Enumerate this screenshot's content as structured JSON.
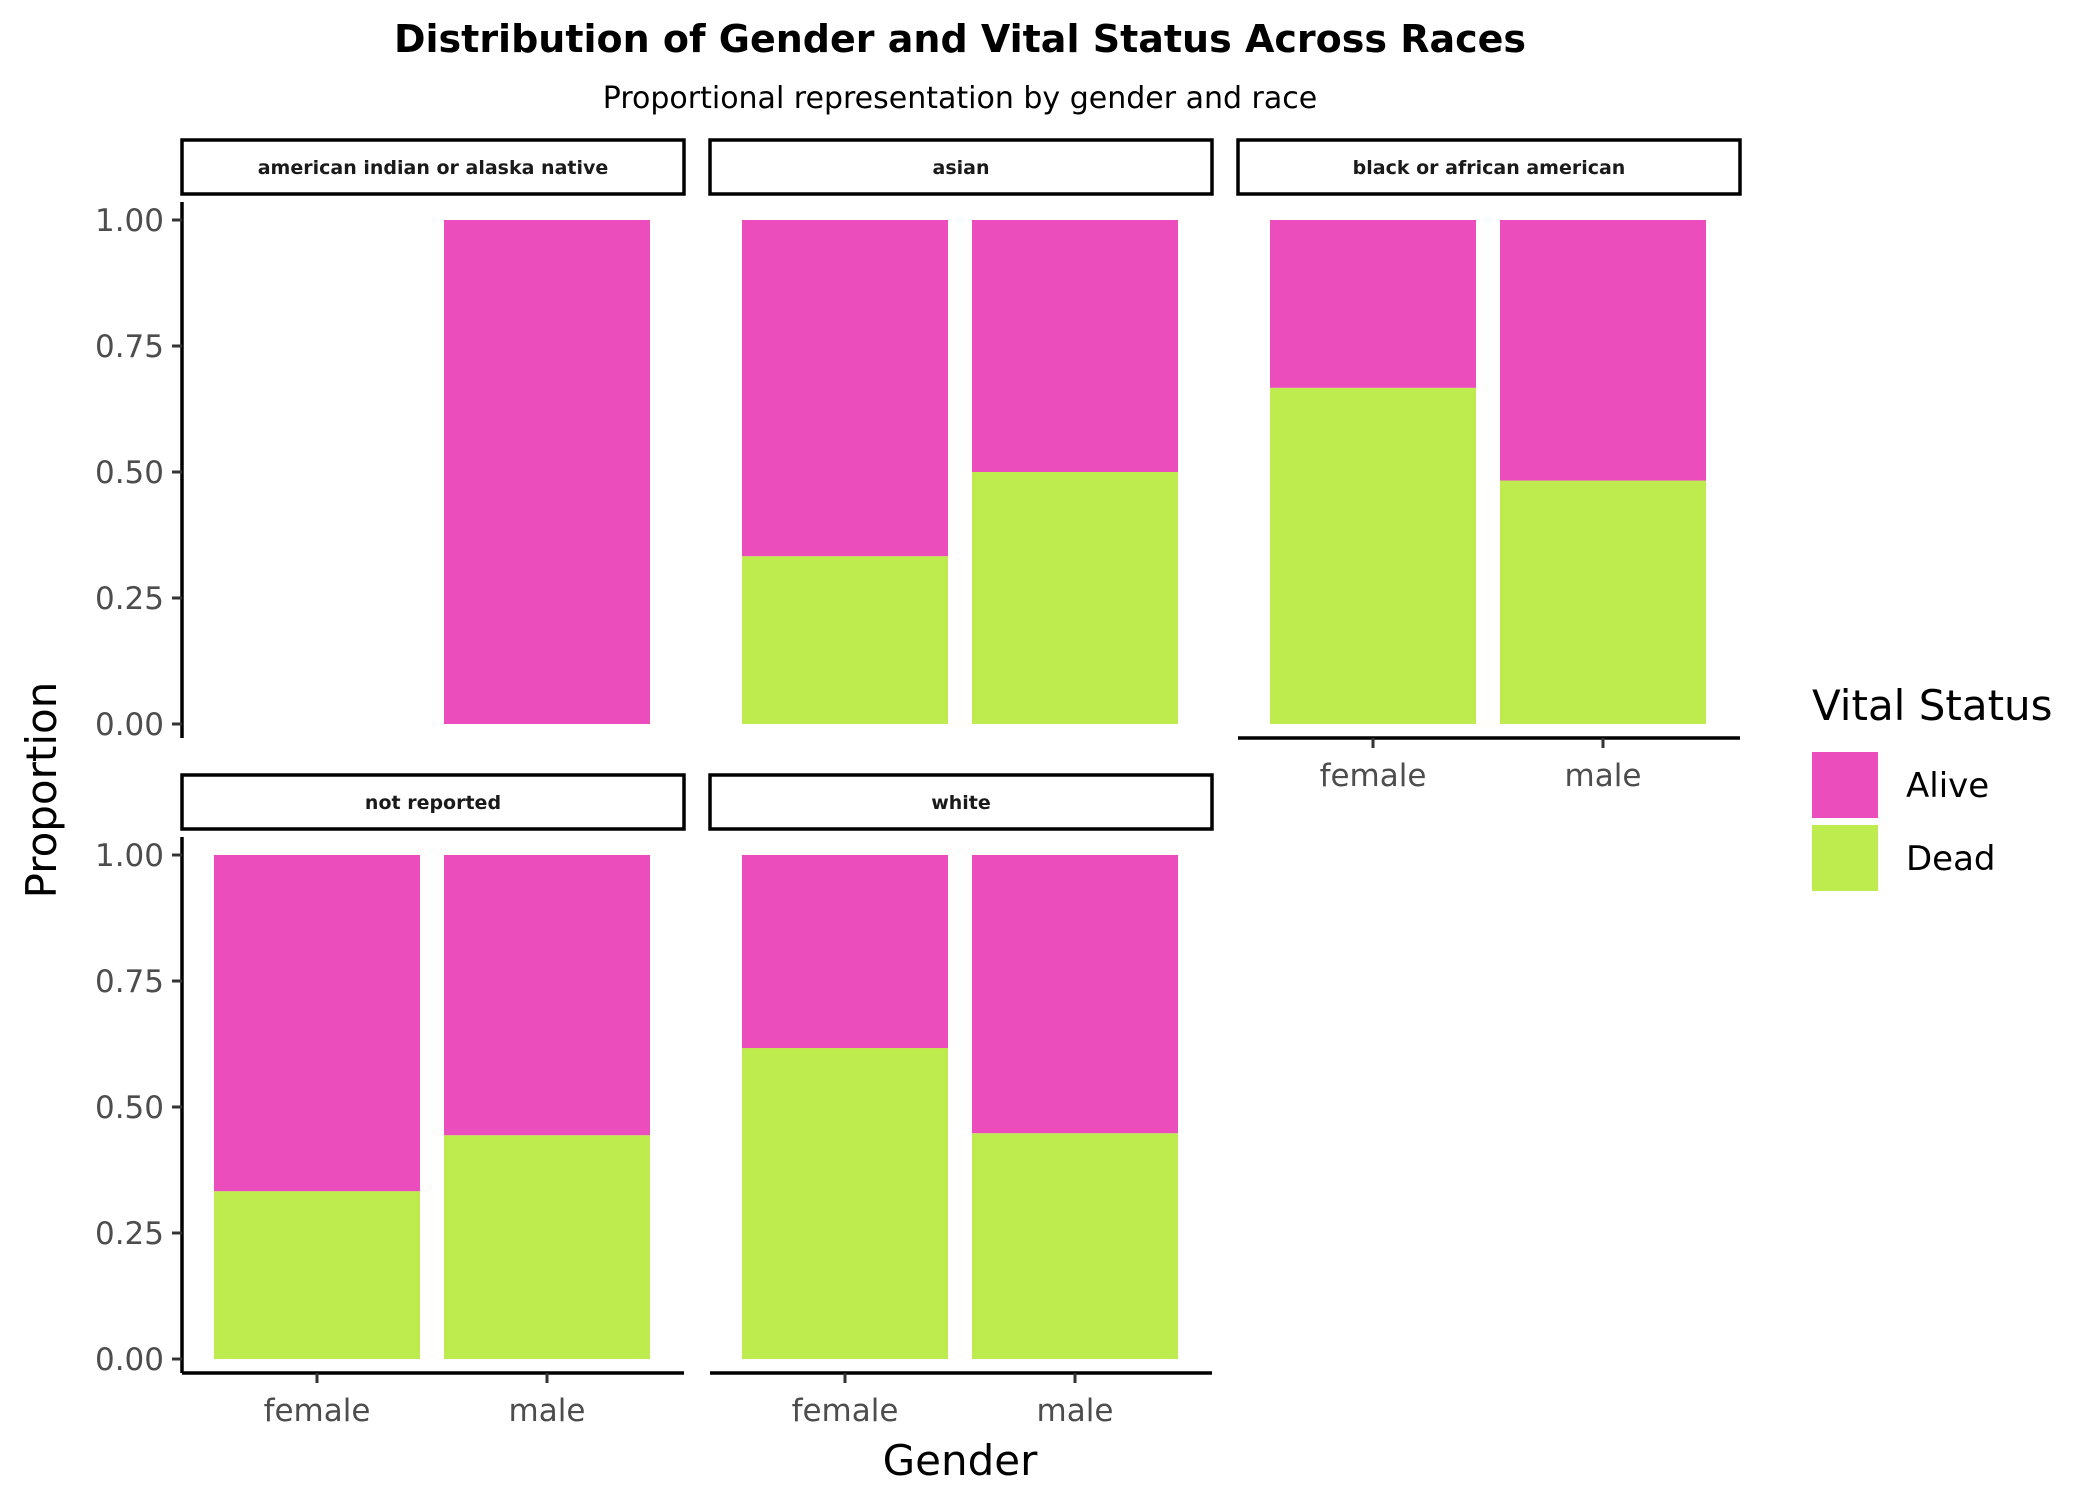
{
  "colors": {
    "Alive": "#EB4DBD",
    "Dead": "#BEEB4D"
  },
  "chart_data": {
    "type": "bar",
    "stacked": true,
    "title": "Distribution of Gender and Vital Status Across Races",
    "subtitle": "Proportional representation by gender and race",
    "xlabel": "Gender",
    "ylabel": "Proportion",
    "ylim": [
      0,
      1
    ],
    "yticks": [
      "0.00",
      "0.25",
      "0.50",
      "0.75",
      "1.00"
    ],
    "categories": [
      "female",
      "male"
    ],
    "legend": {
      "title": "Vital Status",
      "position": "right",
      "entries": [
        "Alive",
        "Dead"
      ]
    },
    "grid": false,
    "facets": [
      {
        "name": "american indian or alaska native",
        "bars": [
          {
            "gender": "male",
            "Dead": 0.0,
            "Alive": 1.0
          }
        ]
      },
      {
        "name": "asian",
        "bars": [
          {
            "gender": "female",
            "Dead": 0.333,
            "Alive": 0.667
          },
          {
            "gender": "male",
            "Dead": 0.5,
            "Alive": 0.5
          }
        ]
      },
      {
        "name": "black or african american",
        "bars": [
          {
            "gender": "female",
            "Dead": 0.667,
            "Alive": 0.333
          },
          {
            "gender": "male",
            "Dead": 0.483,
            "Alive": 0.517
          }
        ]
      },
      {
        "name": "not reported",
        "bars": [
          {
            "gender": "female",
            "Dead": 0.333,
            "Alive": 0.667
          },
          {
            "gender": "male",
            "Dead": 0.444,
            "Alive": 0.556
          }
        ]
      },
      {
        "name": "white",
        "bars": [
          {
            "gender": "female",
            "Dead": 0.617,
            "Alive": 0.383
          },
          {
            "gender": "male",
            "Dead": 0.448,
            "Alive": 0.552
          }
        ]
      }
    ]
  }
}
